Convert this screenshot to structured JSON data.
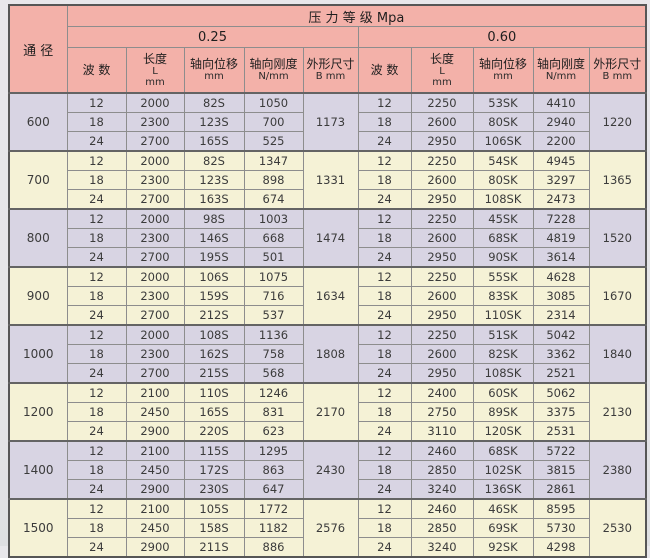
{
  "table": {
    "colors": {
      "header_bg": "#f3b1a9",
      "row_lavender": "#d8d4e3",
      "row_cream": "#f5f2d6",
      "border": "#8d8d8d",
      "outer_border": "#565656",
      "text": "#3b3b3b"
    },
    "header": {
      "diameter": "通 径",
      "pressure_class": "压 力 等 级 Mpa",
      "classes": [
        "0.25",
        "0.60"
      ],
      "cols": [
        [
          "波  数"
        ],
        [
          "长度",
          "L",
          "mm"
        ],
        [
          "轴向位移",
          "mm"
        ],
        [
          "轴向刚度",
          "N/mm"
        ],
        [
          "外形尺寸",
          "B mm"
        ]
      ]
    },
    "groups": [
      {
        "diameter": "600",
        "tone": "lavender",
        "p025": {
          "rows": [
            [
              "12",
              "2000",
              "82S",
              "1050"
            ],
            [
              "18",
              "2300",
              "123S",
              "700"
            ],
            [
              "24",
              "2700",
              "165S",
              "525"
            ]
          ],
          "b": "1173"
        },
        "p060": {
          "rows": [
            [
              "12",
              "2250",
              "53SK",
              "4410"
            ],
            [
              "18",
              "2600",
              "80SK",
              "2940"
            ],
            [
              "24",
              "2950",
              "106SK",
              "2200"
            ]
          ],
          "b": "1220"
        }
      },
      {
        "diameter": "700",
        "tone": "cream",
        "p025": {
          "rows": [
            [
              "12",
              "2000",
              "82S",
              "1347"
            ],
            [
              "18",
              "2300",
              "123S",
              "898"
            ],
            [
              "24",
              "2700",
              "163S",
              "674"
            ]
          ],
          "b": "1331"
        },
        "p060": {
          "rows": [
            [
              "12",
              "2250",
              "54SK",
              "4945"
            ],
            [
              "18",
              "2600",
              "80SK",
              "3297"
            ],
            [
              "24",
              "2950",
              "108SK",
              "2473"
            ]
          ],
          "b": "1365"
        }
      },
      {
        "diameter": "800",
        "tone": "lavender",
        "p025": {
          "rows": [
            [
              "12",
              "2000",
              "98S",
              "1003"
            ],
            [
              "18",
              "2300",
              "146S",
              "668"
            ],
            [
              "24",
              "2700",
              "195S",
              "501"
            ]
          ],
          "b": "1474"
        },
        "p060": {
          "rows": [
            [
              "12",
              "2250",
              "45SK",
              "7228"
            ],
            [
              "18",
              "2600",
              "68SK",
              "4819"
            ],
            [
              "24",
              "2950",
              "90SK",
              "3614"
            ]
          ],
          "b": "1520"
        }
      },
      {
        "diameter": "900",
        "tone": "cream",
        "p025": {
          "rows": [
            [
              "12",
              "2000",
              "106S",
              "1075"
            ],
            [
              "18",
              "2300",
              "159S",
              "716"
            ],
            [
              "24",
              "2700",
              "212S",
              "537"
            ]
          ],
          "b": "1634"
        },
        "p060": {
          "rows": [
            [
              "12",
              "2250",
              "55SK",
              "4628"
            ],
            [
              "18",
              "2600",
              "83SK",
              "3085"
            ],
            [
              "24",
              "2950",
              "110SK",
              "2314"
            ]
          ],
          "b": "1670"
        }
      },
      {
        "diameter": "1000",
        "tone": "lavender",
        "p025": {
          "rows": [
            [
              "12",
              "2000",
              "108S",
              "1136"
            ],
            [
              "18",
              "2300",
              "162S",
              "758"
            ],
            [
              "24",
              "2700",
              "215S",
              "568"
            ]
          ],
          "b": "1808"
        },
        "p060": {
          "rows": [
            [
              "12",
              "2250",
              "51SK",
              "5042"
            ],
            [
              "18",
              "2600",
              "82SK",
              "3362"
            ],
            [
              "24",
              "2950",
              "108SK",
              "2521"
            ]
          ],
          "b": "1840"
        }
      },
      {
        "diameter": "1200",
        "tone": "cream",
        "p025": {
          "rows": [
            [
              "12",
              "2100",
              "110S",
              "1246"
            ],
            [
              "18",
              "2450",
              "165S",
              "831"
            ],
            [
              "24",
              "2900",
              "220S",
              "623"
            ]
          ],
          "b": "2170"
        },
        "p060": {
          "rows": [
            [
              "12",
              "2400",
              "60SK",
              "5062"
            ],
            [
              "18",
              "2750",
              "89SK",
              "3375"
            ],
            [
              "24",
              "3110",
              "120SK",
              "2531"
            ]
          ],
          "b": "2130"
        }
      },
      {
        "diameter": "1400",
        "tone": "lavender",
        "p025": {
          "rows": [
            [
              "12",
              "2100",
              "115S",
              "1295"
            ],
            [
              "18",
              "2450",
              "172S",
              "863"
            ],
            [
              "24",
              "2900",
              "230S",
              "647"
            ]
          ],
          "b": "2430"
        },
        "p060": {
          "rows": [
            [
              "12",
              "2460",
              "68SK",
              "5722"
            ],
            [
              "18",
              "2850",
              "102SK",
              "3815"
            ],
            [
              "24",
              "3240",
              "136SK",
              "2861"
            ]
          ],
          "b": "2380"
        }
      },
      {
        "diameter": "1500",
        "tone": "cream",
        "p025": {
          "rows": [
            [
              "12",
              "2100",
              "105S",
              "1772"
            ],
            [
              "18",
              "2450",
              "158S",
              "1182"
            ],
            [
              "24",
              "2900",
              "211S",
              "886"
            ]
          ],
          "b": "2576"
        },
        "p060": {
          "rows": [
            [
              "12",
              "2460",
              "46SK",
              "8595"
            ],
            [
              "18",
              "2850",
              "69SK",
              "5730"
            ],
            [
              "24",
              "3240",
              "92SK",
              "4298"
            ]
          ],
          "b": "2530"
        }
      }
    ]
  }
}
